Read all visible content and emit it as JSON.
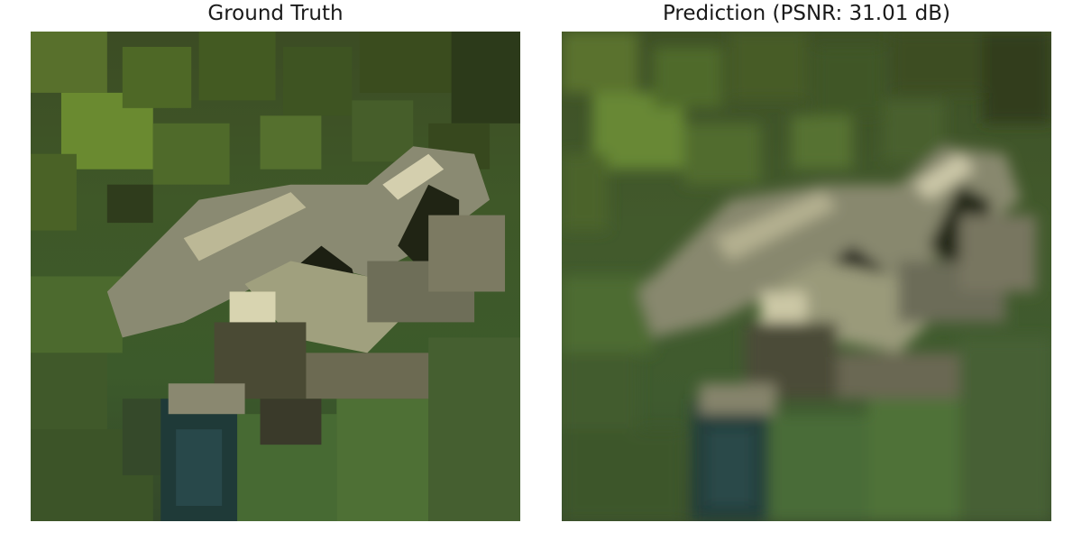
{
  "panels": [
    {
      "title": "Ground Truth"
    },
    {
      "title": "Prediction (PSNR: 31.01 dB)"
    }
  ]
}
